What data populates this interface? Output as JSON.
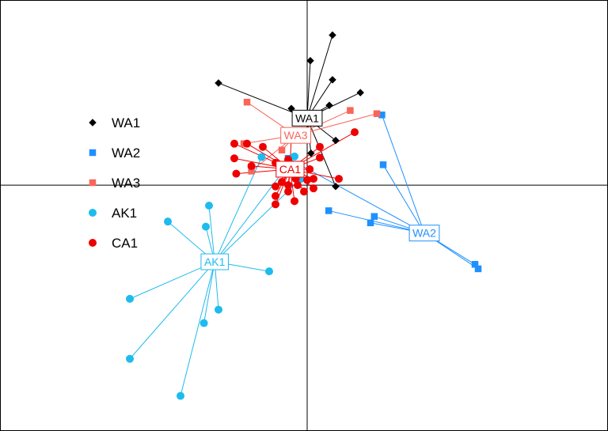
{
  "chart_data": {
    "type": "scatter",
    "title": "",
    "xlabel": "",
    "ylabel": "",
    "xlim": [
      -4.85,
      4.75
    ],
    "ylim": [
      -3.85,
      2.9
    ],
    "grid": false,
    "axes_lines": "cross at 0,0",
    "legend_position": "left",
    "series": [
      {
        "name": "WA1",
        "color": "#000000",
        "marker": "diamond",
        "centroid": [
          0.0,
          1.05
        ],
        "points": [
          [
            0.4,
            2.35
          ],
          [
            0.05,
            1.95
          ],
          [
            -1.4,
            1.6
          ],
          [
            0.4,
            1.65
          ],
          [
            0.84,
            1.45
          ],
          [
            0.35,
            1.25
          ],
          [
            -0.25,
            1.2
          ],
          [
            0.45,
            0.7
          ],
          [
            0.06,
            0.5
          ],
          [
            0.45,
            -0.02
          ]
        ]
      },
      {
        "name": "WA2",
        "color": "#1E90FF",
        "marker": "square",
        "centroid": [
          1.85,
          -0.75
        ],
        "points": [
          [
            1.2,
            0.32
          ],
          [
            1.18,
            1.1
          ],
          [
            0.34,
            -0.4
          ],
          [
            1.06,
            -0.49
          ],
          [
            1.0,
            -0.59
          ],
          [
            2.65,
            -1.24
          ],
          [
            2.7,
            -1.31
          ],
          [
            -0.3,
            0.42
          ]
        ]
      },
      {
        "name": "WA3",
        "color": "#F8665A",
        "marker": "square",
        "centroid": [
          -0.18,
          0.78
        ],
        "points": [
          [
            -0.95,
            1.3
          ],
          [
            0.68,
            1.17
          ],
          [
            1.1,
            1.12
          ],
          [
            -1.0,
            0.65
          ],
          [
            -0.4,
            0.55
          ],
          [
            -0.88,
            0.22
          ]
        ]
      },
      {
        "name": "AK1",
        "color": "#1EBBEE",
        "marker": "circle",
        "centroid": [
          -1.46,
          -1.2
        ],
        "points": [
          [
            -1.55,
            -0.32
          ],
          [
            -1.6,
            -0.65
          ],
          [
            -2.2,
            -0.57
          ],
          [
            -0.6,
            -1.35
          ],
          [
            -1.4,
            -1.95
          ],
          [
            -2.8,
            -1.78
          ],
          [
            -1.63,
            -2.16
          ],
          [
            -2.8,
            -2.72
          ],
          [
            -2.0,
            -3.3
          ],
          [
            -0.72,
            0.44
          ],
          [
            -0.2,
            0.45
          ],
          [
            -0.1,
            0.1
          ]
        ]
      },
      {
        "name": "CA1",
        "color": "#EE0000",
        "marker": "circle",
        "centroid": [
          -0.27,
          0.25
        ],
        "points": [
          [
            -1.15,
            0.65
          ],
          [
            -0.95,
            0.65
          ],
          [
            -0.7,
            0.6
          ],
          [
            -0.25,
            0.8
          ],
          [
            0.75,
            0.83
          ],
          [
            0.2,
            0.6
          ],
          [
            -1.15,
            0.42
          ],
          [
            -1.12,
            0.18
          ],
          [
            -0.88,
            0.3
          ],
          [
            -0.5,
            0.35
          ],
          [
            -0.3,
            0.4
          ],
          [
            0.2,
            0.43
          ],
          [
            0.5,
            0.1
          ],
          [
            0.04,
            0.25
          ],
          [
            -0.3,
            0.2
          ],
          [
            -0.18,
            0.1
          ],
          [
            -0.3,
            0.0
          ],
          [
            0.0,
            0.08
          ],
          [
            -0.15,
            0.0
          ],
          [
            -0.5,
            -0.02
          ],
          [
            -0.3,
            -0.1
          ],
          [
            -0.05,
            -0.1
          ],
          [
            -0.5,
            -0.17
          ],
          [
            -0.5,
            -0.3
          ],
          [
            -0.2,
            -0.25
          ],
          [
            0.1,
            0.1
          ],
          [
            -0.4,
            0.05
          ],
          [
            0.1,
            -0.05
          ]
        ]
      }
    ],
    "legend": [
      {
        "label": "WA1",
        "marker": "diamond",
        "color": "#000000"
      },
      {
        "label": "WA2",
        "marker": "square",
        "color": "#1E90FF"
      },
      {
        "label": "WA3",
        "marker": "square",
        "color": "#F8665A"
      },
      {
        "label": "AK1",
        "marker": "circle",
        "color": "#1EBBEE"
      },
      {
        "label": "CA1",
        "marker": "circle",
        "color": "#EE0000"
      }
    ]
  }
}
